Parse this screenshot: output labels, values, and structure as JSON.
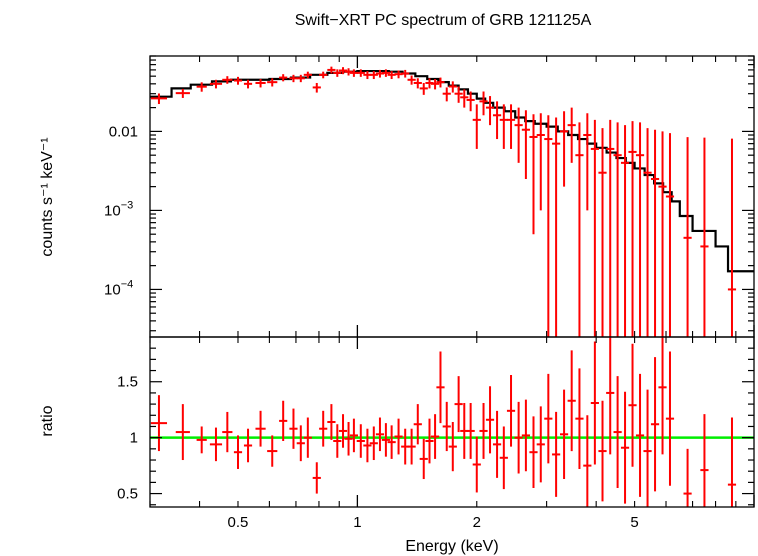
{
  "chart_data": [
    {
      "type": "scatter",
      "title": "Swift−XRT PC spectrum of GRB 121125A",
      "ylabel": "counts s⁻¹ keV⁻¹",
      "xlabel": "",
      "xscale": "log",
      "yscale": "log",
      "xlim": [
        0.3,
        10
      ],
      "ylim": [
        2.5e-05,
        0.09
      ],
      "grid": false,
      "yticks": [
        {
          "value": 0.01,
          "label": "0.01"
        },
        {
          "value": 0.001,
          "label": "10",
          "exp": "−3"
        },
        {
          "value": 0.0001,
          "label": "10",
          "exp": "−4"
        }
      ],
      "colors": {
        "data": "#ff0000",
        "model": "#000000"
      },
      "series": [
        {
          "kind": "data",
          "points": [
            [
              0.316,
              0.0262,
              0.016,
              0.004
            ],
            [
              0.363,
              0.0305,
              0.014,
              0.004
            ],
            [
              0.405,
              0.0368,
              0.01,
              0.005
            ],
            [
              0.44,
              0.04,
              0.012,
              0.005
            ],
            [
              0.47,
              0.045,
              0.01,
              0.005
            ],
            [
              0.5,
              0.044,
              0.008,
              0.005
            ],
            [
              0.53,
              0.04,
              0.008,
              0.005
            ],
            [
              0.57,
              0.041,
              0.01,
              0.005
            ],
            [
              0.61,
              0.042,
              0.01,
              0.005
            ],
            [
              0.65,
              0.048,
              0.008,
              0.005
            ],
            [
              0.69,
              0.047,
              0.008,
              0.005
            ],
            [
              0.72,
              0.047,
              0.008,
              0.005
            ],
            [
              0.75,
              0.052,
              0.008,
              0.005
            ],
            [
              0.79,
              0.036,
              0.008,
              0.005
            ],
            [
              0.82,
              0.052,
              0.008,
              0.005
            ],
            [
              0.86,
              0.06,
              0.008,
              0.006
            ],
            [
              0.89,
              0.055,
              0.008,
              0.006
            ],
            [
              0.92,
              0.059,
              0.008,
              0.006
            ],
            [
              0.95,
              0.057,
              0.008,
              0.006
            ],
            [
              0.98,
              0.055,
              0.008,
              0.006
            ],
            [
              1.02,
              0.055,
              0.008,
              0.006
            ],
            [
              1.06,
              0.052,
              0.008,
              0.006
            ],
            [
              1.1,
              0.052,
              0.008,
              0.006
            ],
            [
              1.14,
              0.054,
              0.008,
              0.006
            ],
            [
              1.18,
              0.055,
              0.008,
              0.006
            ],
            [
              1.22,
              0.052,
              0.008,
              0.006
            ],
            [
              1.27,
              0.053,
              0.008,
              0.006
            ],
            [
              1.32,
              0.054,
              0.008,
              0.006
            ],
            [
              1.37,
              0.045,
              0.008,
              0.006
            ],
            [
              1.42,
              0.041,
              0.008,
              0.006
            ],
            [
              1.47,
              0.035,
              0.008,
              0.006
            ],
            [
              1.52,
              0.041,
              0.008,
              0.006
            ],
            [
              1.57,
              0.04,
              0.008,
              0.006
            ],
            [
              1.62,
              0.042,
              0.008,
              0.006
            ],
            [
              1.68,
              0.03,
              0.008,
              0.006
            ],
            [
              1.74,
              0.037,
              0.008,
              0.006
            ],
            [
              1.8,
              0.03,
              0.008,
              0.007
            ],
            [
              1.86,
              0.027,
              0.008,
              0.007
            ],
            [
              1.93,
              0.025,
              0.008,
              0.007
            ],
            [
              2.0,
              0.014,
              0.008,
              0.008
            ],
            [
              2.08,
              0.024,
              0.008,
              0.008
            ],
            [
              2.16,
              0.02,
              0.008,
              0.008
            ],
            [
              2.25,
              0.016,
              0.008,
              0.008
            ],
            [
              2.34,
              0.014,
              0.008,
              0.008
            ],
            [
              2.44,
              0.014,
              0.008,
              0.008
            ],
            [
              2.55,
              0.012,
              0.008,
              0.008
            ],
            [
              2.66,
              0.0105,
              0.008,
              0.008
            ],
            [
              2.78,
              0.0085,
              0.008,
              0.008
            ],
            [
              2.9,
              0.009,
              0.008,
              0.008
            ],
            [
              3.03,
              0.008,
              0.008,
              0.008
            ],
            [
              3.17,
              0.007,
              0.008,
              0.008
            ],
            [
              3.32,
              0.01,
              0.008,
              0.008
            ],
            [
              3.47,
              0.012,
              0.008,
              0.008
            ],
            [
              3.63,
              0.005,
              0.008,
              0.008
            ],
            [
              3.8,
              0.009,
              0.008,
              0.008
            ],
            [
              3.97,
              0.006,
              0.008,
              0.008
            ],
            [
              4.15,
              0.003,
              0.008,
              0.008
            ],
            [
              4.34,
              0.006,
              0.008,
              0.008
            ],
            [
              4.53,
              0.005,
              0.008,
              0.008
            ],
            [
              4.73,
              0.004,
              0.008,
              0.008
            ],
            [
              4.94,
              0.0055,
              0.008,
              0.008
            ],
            [
              5.16,
              0.005,
              0.008,
              0.008
            ],
            [
              5.39,
              0.003,
              0.008,
              0.008
            ],
            [
              5.63,
              0.0025,
              0.008,
              0.008
            ],
            [
              5.88,
              0.002,
              0.008,
              0.008
            ],
            [
              6.14,
              0.0015,
              0.008,
              0.008
            ],
            [
              6.8,
              0.00045,
              0.008,
              0.008
            ],
            [
              7.5,
              0.00035,
              0.008,
              0.008
            ],
            [
              8.8,
              0.0001,
              0.008,
              0.008
            ]
          ]
        },
        {
          "kind": "model",
          "steps": [
            [
              0.3,
              0.0275
            ],
            [
              0.34,
              0.035
            ],
            [
              0.38,
              0.039
            ],
            [
              0.43,
              0.043
            ],
            [
              0.48,
              0.045
            ],
            [
              0.53,
              0.045
            ],
            [
              0.6,
              0.046
            ],
            [
              0.68,
              0.048
            ],
            [
              0.76,
              0.052
            ],
            [
              0.84,
              0.055
            ],
            [
              0.92,
              0.057
            ],
            [
              1.0,
              0.058
            ],
            [
              1.1,
              0.058
            ],
            [
              1.2,
              0.057
            ],
            [
              1.3,
              0.054
            ],
            [
              1.4,
              0.05
            ],
            [
              1.5,
              0.046
            ],
            [
              1.6,
              0.042
            ],
            [
              1.7,
              0.038
            ],
            [
              1.8,
              0.034
            ],
            [
              1.9,
              0.03
            ],
            [
              2.0,
              0.026
            ],
            [
              2.1,
              0.023
            ],
            [
              2.2,
              0.02
            ],
            [
              2.35,
              0.018
            ],
            [
              2.5,
              0.015
            ],
            [
              2.65,
              0.0135
            ],
            [
              2.8,
              0.0125
            ],
            [
              3.0,
              0.0115
            ],
            [
              3.2,
              0.01
            ],
            [
              3.4,
              0.009
            ],
            [
              3.6,
              0.008
            ],
            [
              3.8,
              0.007
            ],
            [
              4.0,
              0.0062
            ],
            [
              4.25,
              0.0054
            ],
            [
              4.5,
              0.0046
            ],
            [
              4.75,
              0.004
            ],
            [
              5.0,
              0.0034
            ],
            [
              5.3,
              0.0028
            ],
            [
              5.6,
              0.0022
            ],
            [
              5.9,
              0.0017
            ],
            [
              6.2,
              0.0013
            ],
            [
              6.5,
              0.00085
            ],
            [
              7.0,
              0.00055
            ],
            [
              8.0,
              0.00035
            ],
            [
              8.6,
              0.00017
            ],
            [
              10.0,
              0.00017
            ]
          ]
        }
      ]
    },
    {
      "type": "scatter",
      "title": "",
      "ylabel": "ratio",
      "xlabel": "Energy (keV)",
      "xscale": "log",
      "yscale": "linear",
      "xlim": [
        0.3,
        10
      ],
      "ylim": [
        0.38,
        1.9
      ],
      "grid": false,
      "yticks": [
        {
          "value": 0.5,
          "label": "0.5"
        },
        {
          "value": 1.0,
          "label": "1"
        },
        {
          "value": 1.5,
          "label": "1.5"
        }
      ],
      "xticks": [
        {
          "value": 0.5,
          "label": "0.5"
        },
        {
          "value": 1,
          "label": "1"
        },
        {
          "value": 2,
          "label": "2"
        },
        {
          "value": 5,
          "label": "5"
        }
      ],
      "reference_line": 1.0,
      "colors": {
        "data": "#ff0000",
        "reference": "#00ee00"
      },
      "series": [
        {
          "kind": "ratio",
          "points": [
            [
              0.316,
              1.13,
              0.25
            ],
            [
              0.363,
              1.05,
              0.25
            ],
            [
              0.405,
              0.98,
              0.12
            ],
            [
              0.44,
              0.94,
              0.15
            ],
            [
              0.47,
              1.05,
              0.18
            ],
            [
              0.5,
              0.87,
              0.15
            ],
            [
              0.53,
              0.93,
              0.15
            ],
            [
              0.57,
              1.08,
              0.16
            ],
            [
              0.61,
              0.88,
              0.14
            ],
            [
              0.65,
              1.15,
              0.18
            ],
            [
              0.69,
              1.08,
              0.18
            ],
            [
              0.72,
              0.95,
              0.16
            ],
            [
              0.75,
              1.0,
              0.18
            ],
            [
              0.79,
              0.64,
              0.14
            ],
            [
              0.82,
              1.08,
              0.16
            ],
            [
              0.86,
              1.14,
              0.16
            ],
            [
              0.89,
              0.97,
              0.15
            ],
            [
              0.92,
              1.06,
              0.15
            ],
            [
              0.95,
              0.99,
              0.15
            ],
            [
              0.98,
              1.02,
              0.15
            ],
            [
              1.02,
              0.97,
              0.15
            ],
            [
              1.06,
              0.93,
              0.15
            ],
            [
              1.1,
              0.95,
              0.15
            ],
            [
              1.14,
              1.03,
              0.15
            ],
            [
              1.18,
              0.98,
              0.15
            ],
            [
              1.22,
              0.96,
              0.15
            ],
            [
              1.27,
              1.01,
              0.16
            ],
            [
              1.32,
              0.92,
              0.16
            ],
            [
              1.37,
              0.92,
              0.16
            ],
            [
              1.42,
              1.12,
              0.18
            ],
            [
              1.47,
              0.81,
              0.18
            ],
            [
              1.52,
              0.97,
              0.2
            ],
            [
              1.57,
              1.01,
              0.2
            ],
            [
              1.62,
              1.45,
              0.32
            ],
            [
              1.68,
              1.1,
              0.22
            ],
            [
              1.74,
              0.92,
              0.22
            ],
            [
              1.8,
              1.3,
              0.25
            ],
            [
              1.86,
              1.06,
              0.25
            ],
            [
              1.93,
              1.06,
              0.25
            ],
            [
              2.0,
              0.76,
              0.25
            ],
            [
              2.08,
              1.06,
              0.25
            ],
            [
              2.16,
              1.16,
              0.3
            ],
            [
              2.25,
              0.94,
              0.3
            ],
            [
              2.34,
              0.82,
              0.28
            ],
            [
              2.44,
              1.24,
              0.32
            ],
            [
              2.55,
              1.0,
              0.32
            ],
            [
              2.66,
              1.02,
              0.32
            ],
            [
              2.78,
              0.87,
              0.32
            ],
            [
              2.9,
              0.94,
              0.34
            ],
            [
              3.03,
              1.17,
              0.4
            ],
            [
              3.17,
              0.85,
              0.38
            ],
            [
              3.32,
              1.03,
              0.4
            ],
            [
              3.47,
              1.33,
              0.45
            ],
            [
              3.63,
              1.17,
              0.45
            ],
            [
              3.8,
              0.75,
              0.45
            ],
            [
              3.97,
              1.31,
              0.55
            ],
            [
              4.15,
              0.88,
              0.45
            ],
            [
              4.34,
              1.4,
              0.55
            ],
            [
              4.53,
              1.05,
              0.5
            ],
            [
              4.73,
              0.91,
              0.5
            ],
            [
              4.94,
              1.29,
              0.55
            ],
            [
              5.16,
              1.02,
              0.55
            ],
            [
              5.39,
              0.88,
              0.55
            ],
            [
              5.63,
              1.12,
              0.6
            ],
            [
              5.88,
              1.45,
              0.6
            ],
            [
              6.14,
              1.17,
              0.6
            ],
            [
              6.8,
              0.5,
              0.4
            ],
            [
              7.5,
              0.71,
              0.5
            ],
            [
              8.8,
              0.58,
              0.6
            ]
          ]
        }
      ]
    }
  ]
}
